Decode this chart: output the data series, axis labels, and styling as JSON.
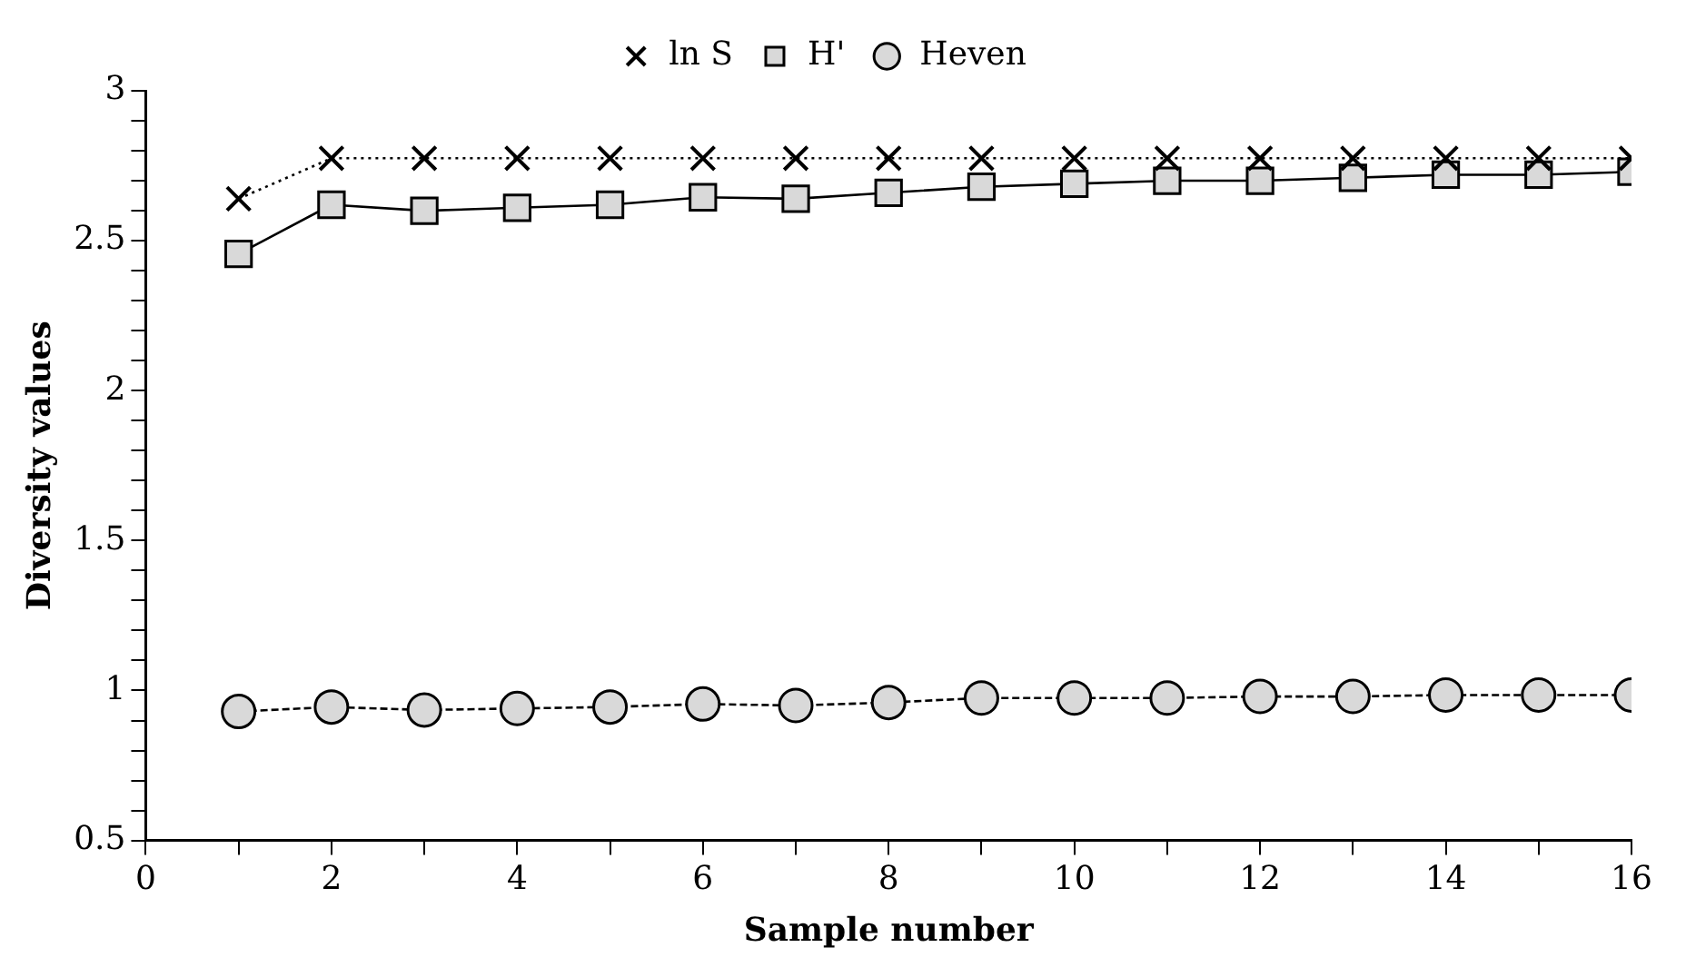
{
  "chart_data": {
    "type": "line",
    "xlabel": "Sample number",
    "ylabel": "Diversity values",
    "x": [
      1,
      2,
      3,
      4,
      5,
      6,
      7,
      8,
      9,
      10,
      11,
      12,
      13,
      14,
      15,
      16
    ],
    "series": [
      {
        "name": "ln S",
        "color": "#000000",
        "marker": "cross",
        "line_style": "dotted",
        "values": [
          2.64,
          2.775,
          2.775,
          2.775,
          2.775,
          2.775,
          2.775,
          2.775,
          2.775,
          2.775,
          2.775,
          2.775,
          2.775,
          2.775,
          2.775,
          2.775
        ]
      },
      {
        "name": "H'",
        "color": "#000000",
        "marker": "square",
        "line_style": "solid",
        "values": [
          2.456,
          2.62,
          2.6,
          2.61,
          2.62,
          2.645,
          2.64,
          2.66,
          2.68,
          2.69,
          2.7,
          2.7,
          2.71,
          2.72,
          2.72,
          2.73
        ]
      },
      {
        "name": "Heven",
        "color": "#000000",
        "marker": "circle",
        "line_style": "dashed",
        "values": [
          0.93,
          0.945,
          0.935,
          0.94,
          0.945,
          0.955,
          0.95,
          0.96,
          0.975,
          0.975,
          0.975,
          0.98,
          0.98,
          0.985,
          0.985,
          0.985
        ]
      }
    ],
    "xlim": [
      0,
      16
    ],
    "xticks": [
      0,
      {
        "value": 1,
        "label": null
      },
      2,
      {
        "value": 3,
        "label": null
      },
      4,
      {
        "value": 5,
        "label": null
      },
      6,
      {
        "value": 7,
        "label": null
      },
      8,
      {
        "value": 9,
        "label": null
      },
      10,
      {
        "value": 11,
        "label": null
      },
      12,
      {
        "value": 13,
        "label": null
      },
      14,
      {
        "value": 15,
        "label": null
      },
      16
    ],
    "ylim": [
      0.5,
      3
    ],
    "yticks": [
      0.5,
      {
        "value": 0.6,
        "label": null
      },
      {
        "value": 0.7,
        "label": null
      },
      {
        "value": 0.8,
        "label": null
      },
      {
        "value": 0.9,
        "label": null
      },
      1,
      {
        "value": 1.1,
        "label": null
      },
      {
        "value": 1.2,
        "label": null
      },
      {
        "value": 1.3,
        "label": null
      },
      {
        "value": 1.4,
        "label": null
      },
      1.5,
      {
        "value": 1.6,
        "label": null
      },
      {
        "value": 1.7,
        "label": null
      },
      {
        "value": 1.8,
        "label": null
      },
      {
        "value": 1.9,
        "label": null
      },
      2,
      {
        "value": 2.1,
        "label": null
      },
      {
        "value": 2.2,
        "label": null
      },
      {
        "value": 2.3,
        "label": null
      },
      {
        "value": 2.4,
        "label": null
      },
      2.5,
      {
        "value": 2.6,
        "label": null
      },
      {
        "value": 2.7,
        "label": null
      },
      {
        "value": 2.8,
        "label": null
      },
      {
        "value": 2.9,
        "label": null
      },
      3
    ],
    "grid": false,
    "legend": "top"
  }
}
